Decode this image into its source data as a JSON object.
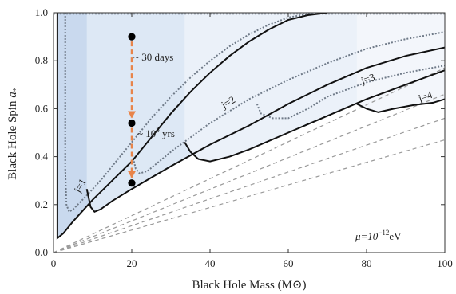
{
  "chart_data": {
    "type": "area",
    "title": "",
    "xlabel": "Black Hole Mass (M⊙)",
    "ylabel": "Black Hole Spin a*",
    "xlim": [
      0,
      100
    ],
    "ylim": [
      0,
      1
    ],
    "x_ticks": [
      "0",
      "20",
      "40",
      "60",
      "80",
      "100"
    ],
    "y_ticks": [
      "0.0",
      "0.2",
      "0.4",
      "0.6",
      "0.8",
      "1.0"
    ],
    "grid": false,
    "regions": [
      {
        "name": "j=1",
        "color": "#c9d9ee",
        "boundary": [
          [
            1,
            0.06
          ],
          [
            2.5,
            0.08
          ],
          [
            5,
            0.13
          ],
          [
            10,
            0.22
          ],
          [
            15,
            0.3
          ],
          [
            20,
            0.38
          ],
          [
            25,
            0.48
          ],
          [
            30,
            0.58
          ],
          [
            35,
            0.67
          ],
          [
            40,
            0.75
          ],
          [
            45,
            0.82
          ],
          [
            50,
            0.88
          ],
          [
            55,
            0.93
          ],
          [
            60,
            0.97
          ],
          [
            65,
            0.99
          ],
          [
            70,
            1.0
          ]
        ]
      },
      {
        "name": "j=2",
        "color": "#dde8f5",
        "boundary": [
          [
            8.5,
            0.265
          ],
          [
            9.5,
            0.19
          ],
          [
            10.5,
            0.17
          ],
          [
            12,
            0.18
          ],
          [
            15,
            0.215
          ],
          [
            20,
            0.265
          ],
          [
            30,
            0.36
          ],
          [
            40,
            0.45
          ],
          [
            50,
            0.53
          ],
          [
            60,
            0.62
          ],
          [
            70,
            0.7
          ],
          [
            80,
            0.77
          ],
          [
            90,
            0.82
          ],
          [
            100,
            0.855
          ]
        ]
      },
      {
        "name": "j=3",
        "color": "#ebf1f9",
        "boundary": [
          [
            33.5,
            0.46
          ],
          [
            35,
            0.42
          ],
          [
            37,
            0.39
          ],
          [
            40,
            0.38
          ],
          [
            45,
            0.4
          ],
          [
            50,
            0.43
          ],
          [
            60,
            0.5
          ],
          [
            70,
            0.57
          ],
          [
            80,
            0.64
          ],
          [
            90,
            0.7
          ],
          [
            100,
            0.76
          ]
        ]
      },
      {
        "name": "j=4",
        "color": "#f3f6fb",
        "boundary": [
          [
            77.5,
            0.62
          ],
          [
            80,
            0.6
          ],
          [
            83,
            0.585
          ],
          [
            87,
            0.6
          ],
          [
            92,
            0.615
          ],
          [
            97,
            0.625
          ],
          [
            100,
            0.64
          ]
        ]
      }
    ],
    "dotted_curves": [
      [
        [
          3,
          1.0
        ],
        [
          3,
          0.35
        ],
        [
          3.3,
          0.2
        ],
        [
          4,
          0.17
        ],
        [
          5,
          0.18
        ],
        [
          8,
          0.23
        ],
        [
          12,
          0.3
        ],
        [
          16,
          0.38
        ],
        [
          20,
          0.46
        ],
        [
          25,
          0.56
        ],
        [
          30,
          0.65
        ],
        [
          35,
          0.73
        ],
        [
          40,
          0.8
        ],
        [
          45,
          0.86
        ],
        [
          50,
          0.91
        ],
        [
          55,
          0.95
        ],
        [
          60,
          0.98
        ],
        [
          65,
          0.995
        ],
        [
          70,
          1.0
        ]
      ],
      [
        [
          20,
          0.42
        ],
        [
          21,
          0.35
        ],
        [
          22,
          0.33
        ],
        [
          24,
          0.34
        ],
        [
          30,
          0.42
        ],
        [
          40,
          0.54
        ],
        [
          50,
          0.64
        ],
        [
          60,
          0.72
        ],
        [
          70,
          0.79
        ],
        [
          80,
          0.85
        ],
        [
          90,
          0.89
        ],
        [
          100,
          0.92
        ]
      ],
      [
        [
          52,
          0.62
        ],
        [
          53,
          0.58
        ],
        [
          56,
          0.56
        ],
        [
          60,
          0.56
        ],
        [
          65,
          0.6
        ],
        [
          70,
          0.65
        ],
        [
          80,
          0.71
        ],
        [
          90,
          0.75
        ],
        [
          100,
          0.78
        ]
      ]
    ],
    "gray_dashed": [
      [
        [
          0,
          0
        ],
        [
          100,
          0.77
        ]
      ],
      [
        [
          0,
          0
        ],
        [
          100,
          0.66
        ]
      ],
      [
        [
          0,
          0
        ],
        [
          100,
          0.56
        ]
      ],
      [
        [
          0,
          0
        ],
        [
          100,
          0.47
        ]
      ]
    ],
    "points": [
      {
        "x": 20,
        "y": 0.9
      },
      {
        "x": 20,
        "y": 0.54
      },
      {
        "x": 20,
        "y": 0.29
      }
    ],
    "arrow_color": "#e8844a",
    "annotations": {
      "t1": "~ 30 days",
      "t2_pre": "~ 10",
      "t2_exp": "5",
      "t2_post": " yrs",
      "j1": "j=1",
      "j2": "j=2",
      "j3": "j=3",
      "j4": "j=4",
      "mu_pre": "μ=10",
      "mu_exp": "−12",
      "mu_post": "eV"
    }
  }
}
